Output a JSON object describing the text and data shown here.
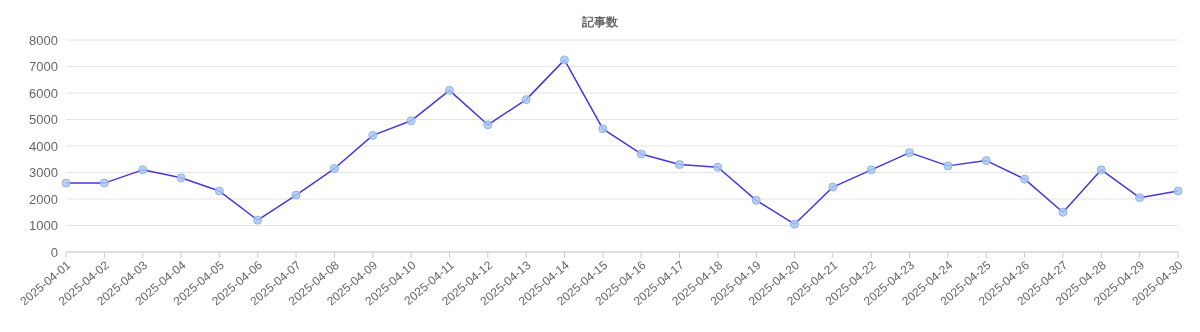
{
  "chart_data": {
    "type": "line",
    "title": "記事数",
    "categories": [
      "2025-04-01",
      "2025-04-02",
      "2025-04-03",
      "2025-04-04",
      "2025-04-05",
      "2025-04-06",
      "2025-04-07",
      "2025-04-08",
      "2025-04-09",
      "2025-04-10",
      "2025-04-11",
      "2025-04-12",
      "2025-04-13",
      "2025-04-14",
      "2025-04-15",
      "2025-04-16",
      "2025-04-17",
      "2025-04-18",
      "2025-04-19",
      "2025-04-20",
      "2025-04-21",
      "2025-04-22",
      "2025-04-23",
      "2025-04-24",
      "2025-04-25",
      "2025-04-26",
      "2025-04-27",
      "2025-04-28",
      "2025-04-29",
      "2025-04-30"
    ],
    "series": [
      {
        "color": "#4a35d8",
        "values": [
          2600,
          2600,
          3100,
          2800,
          2300,
          1200,
          2150,
          3150,
          4400,
          4950,
          6100,
          4800,
          5750,
          7250,
          4650,
          3700,
          3300,
          3200,
          1950,
          1050,
          2450,
          3100,
          3750,
          3250,
          3450,
          2750,
          1500,
          3100,
          2050,
          2300
        ]
      }
    ],
    "ylim": [
      0,
      8000
    ],
    "yticks": [
      0,
      1000,
      2000,
      3000,
      4000,
      5000,
      6000,
      7000,
      8000
    ],
    "grid": "y",
    "marker": "circle",
    "line_style": "solid"
  }
}
